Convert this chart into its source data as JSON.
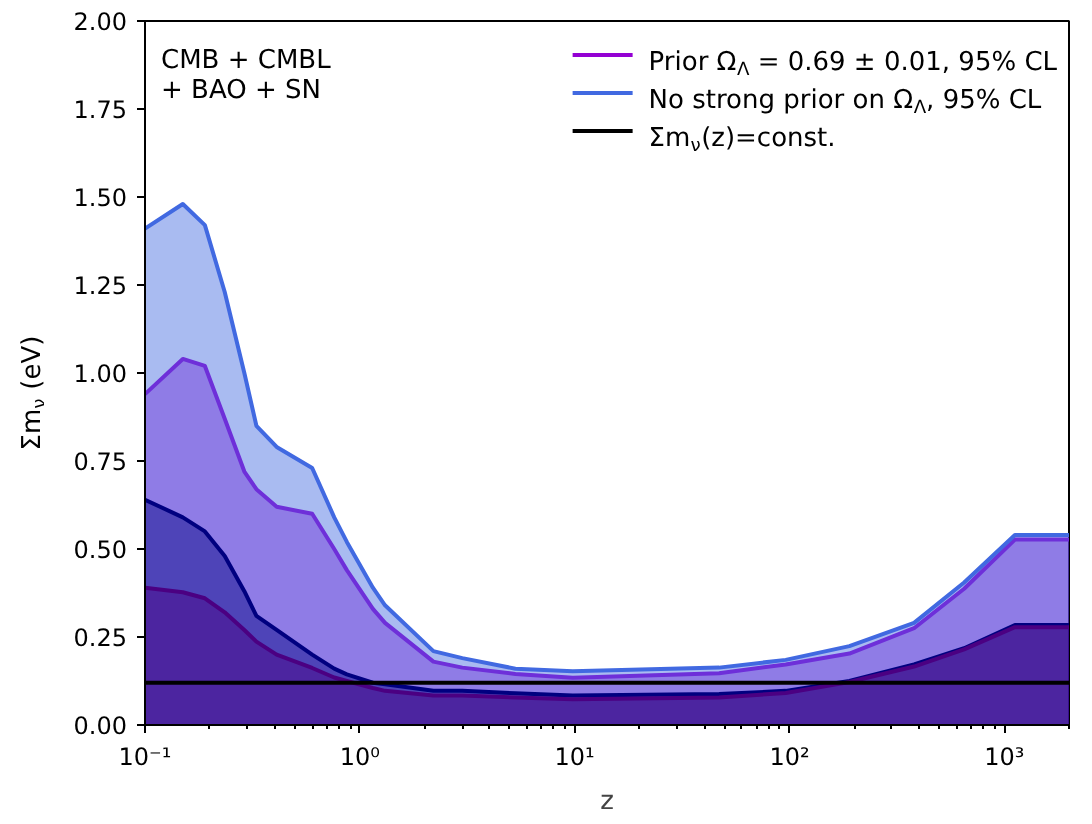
{
  "chart_data": {
    "type": "area",
    "xlabel": "z",
    "ylabel": "Σm$_{ν}$ (eV)",
    "log": "x",
    "grid": false,
    "legend": "top right",
    "annotations": [
      "CMB + CMBL\n+ BAO + SN"
    ],
    "xlim": [
      0.1,
      2000
    ],
    "ylim": [
      0,
      2
    ],
    "xticks": [
      {
        "value": 0.1,
        "label": "10⁻¹"
      },
      {
        "value": 1,
        "label": "10⁰"
      },
      {
        "value": 10,
        "label": "10¹"
      },
      {
        "value": 100,
        "label": "10²"
      },
      {
        "value": 1000,
        "label": "10³"
      }
    ],
    "yticks": [
      {
        "value": 0,
        "label": "0.00"
      },
      {
        "value": 0.25,
        "label": "0.25"
      },
      {
        "value": 0.5,
        "label": "0.50"
      },
      {
        "value": 0.75,
        "label": "0.75"
      },
      {
        "value": 1,
        "label": "1.00"
      },
      {
        "value": 1.25,
        "label": "1.25"
      },
      {
        "value": 1.5,
        "label": "1.50"
      },
      {
        "value": 1.75,
        "label": "1.75"
      },
      {
        "value": 2,
        "label": "2.00"
      }
    ],
    "x": [
      0.1,
      0.15,
      0.19,
      0.235,
      0.29,
      0.33,
      0.41,
      0.6,
      0.76,
      0.87,
      1.15,
      1.31,
      2.2,
      3,
      5.3,
      9.8,
      47,
      96,
      190,
      380,
      650,
      1120,
      2000
    ],
    "series": [
      {
        "name": "Prior Ω$_{Λ}$ = 0.69 ± 0.01, 95% CL",
        "color": "#9400d3",
        "values": [
          0.94,
          1.04,
          1.02,
          0.87,
          0.72,
          0.67,
          0.62,
          0.6,
          0.5,
          0.44,
          0.33,
          0.29,
          0.18,
          0.163,
          0.145,
          0.134,
          0.147,
          0.172,
          0.203,
          0.275,
          0.387,
          0.527,
          0.527
        ]
      },
      {
        "name": "No strong prior on Ω$_{Λ}$, 95% CL",
        "color": "#4169e1",
        "values": [
          1.41,
          1.48,
          1.42,
          1.23,
          1.0,
          0.85,
          0.79,
          0.73,
          0.59,
          0.52,
          0.39,
          0.34,
          0.21,
          0.19,
          0.16,
          0.153,
          0.163,
          0.185,
          0.224,
          0.29,
          0.405,
          0.54,
          0.54
        ]
      },
      {
        "color": "#000080",
        "values": [
          0.64,
          0.59,
          0.55,
          0.48,
          0.38,
          0.31,
          0.27,
          0.2,
          0.16,
          0.144,
          0.12,
          0.116,
          0.097,
          0.097,
          0.09,
          0.084,
          0.088,
          0.097,
          0.125,
          0.172,
          0.218,
          0.284,
          0.284
        ]
      },
      {
        "color": "#4b0082",
        "values": [
          0.39,
          0.377,
          0.36,
          0.32,
          0.27,
          0.237,
          0.2,
          0.162,
          0.135,
          0.125,
          0.105,
          0.097,
          0.084,
          0.084,
          0.078,
          0.073,
          0.078,
          0.091,
          0.122,
          0.166,
          0.215,
          0.278,
          0.278
        ]
      },
      {
        "name": "Σm$_{ν}$(z)=const.",
        "type": "line",
        "color": "#000000",
        "x": [
          0.1,
          2000
        ],
        "values": [
          0.12,
          0.12
        ]
      }
    ]
  }
}
